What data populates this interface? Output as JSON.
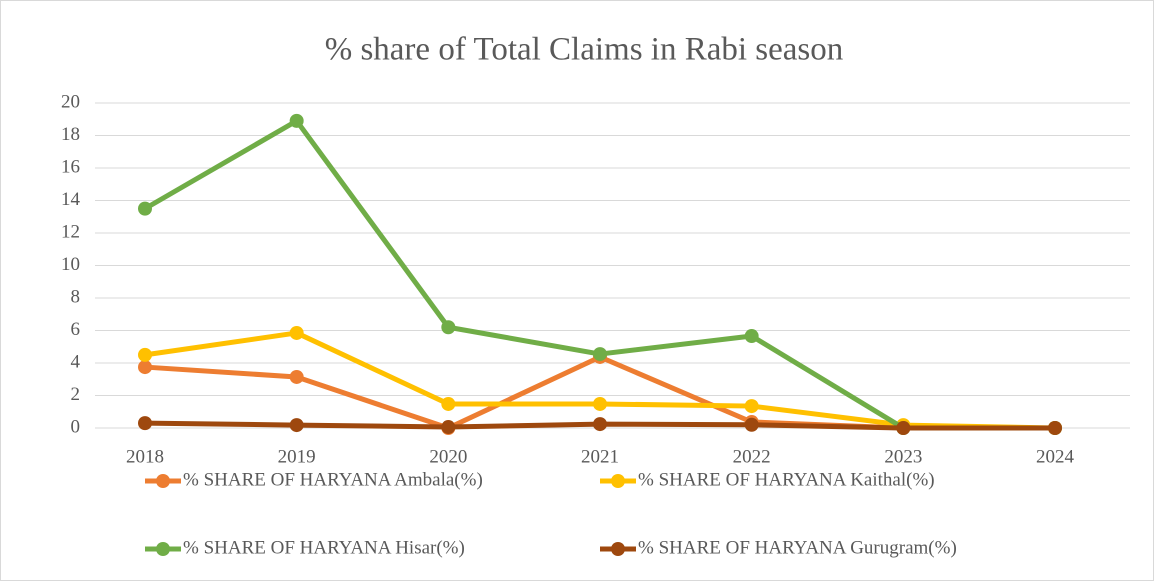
{
  "chart_data": {
    "type": "line",
    "title": "% share of Total Claims in Rabi season",
    "categories": [
      "2018",
      "2019",
      "2020",
      "2021",
      "2022",
      "2023",
      "2024"
    ],
    "series": [
      {
        "name": "% SHARE OF HARYANA Ambala(%)",
        "color": "#ed7d31",
        "values": [
          3.75,
          3.14,
          0,
          4.37,
          0.37,
          0,
          0
        ]
      },
      {
        "name": "% SHARE OF HARYANA Kaithal(%)",
        "color": "#ffc000",
        "values": [
          4.5,
          5.85,
          1.48,
          1.48,
          1.35,
          0.18,
          0
        ]
      },
      {
        "name": "% SHARE OF HARYANA Hisar(%)",
        "color": "#70ad47",
        "values": [
          13.5,
          18.9,
          6.2,
          4.55,
          5.66,
          0,
          0
        ]
      },
      {
        "name": "% SHARE OF HARYANA Gurugram(%)",
        "color": "#9e480e",
        "values": [
          0.3,
          0.18,
          0.06,
          0.24,
          0.2,
          0,
          0
        ]
      }
    ],
    "ylim": [
      0,
      20
    ],
    "yticks": [
      0,
      2,
      4,
      6,
      8,
      10,
      12,
      14,
      16,
      18,
      20
    ],
    "grid": true,
    "legend": "bottom"
  }
}
